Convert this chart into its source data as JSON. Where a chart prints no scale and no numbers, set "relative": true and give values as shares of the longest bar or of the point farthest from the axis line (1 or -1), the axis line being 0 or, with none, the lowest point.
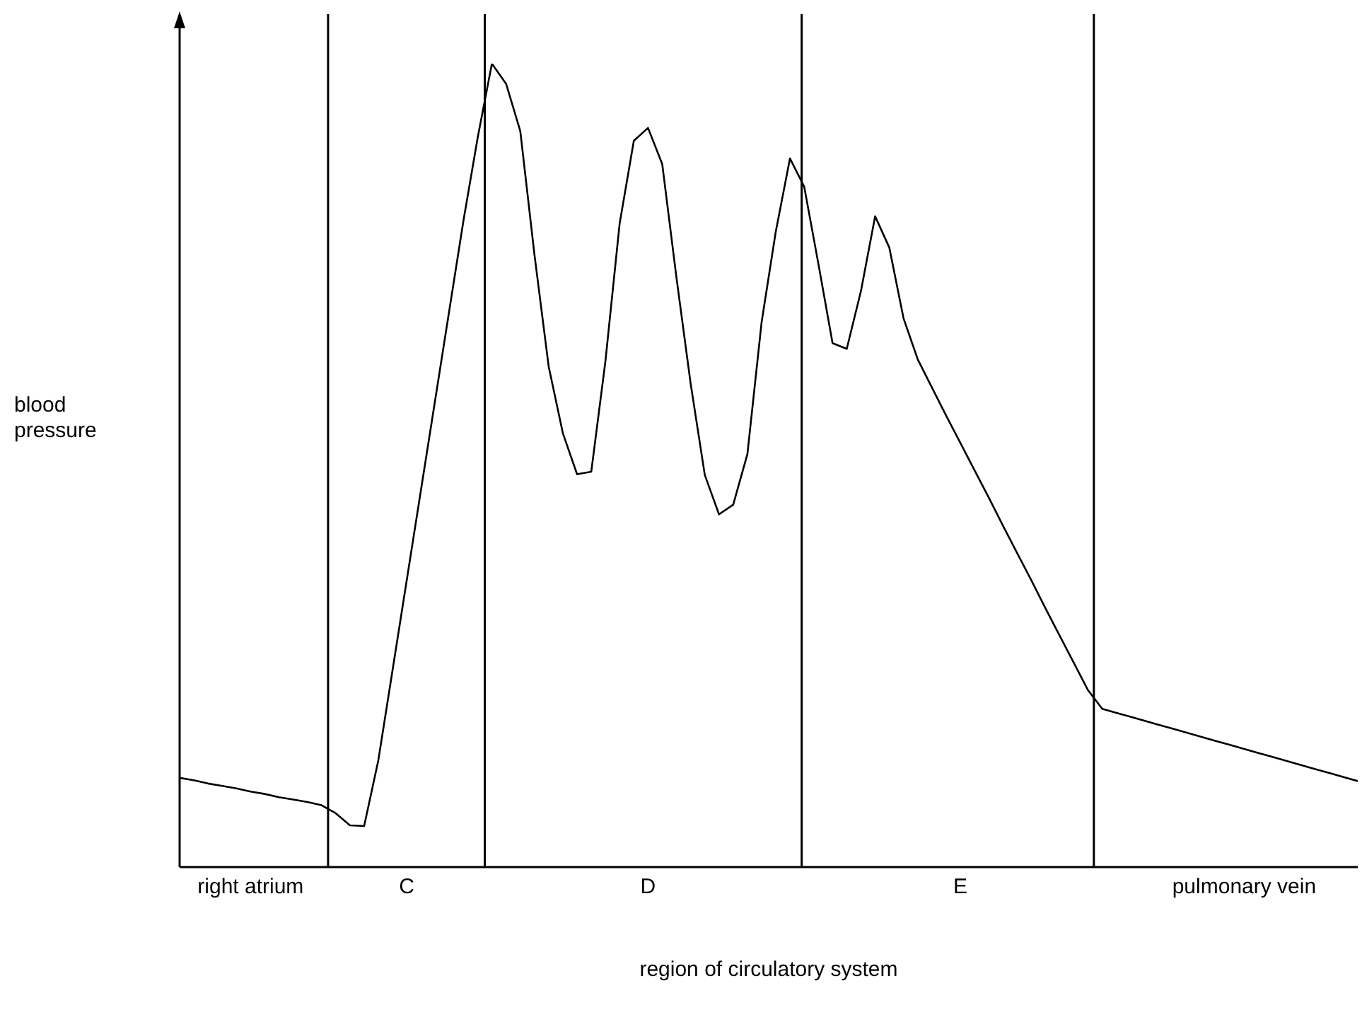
{
  "chart_data": {
    "type": "line",
    "relative": true,
    "xlabel": "region of circulatory system",
    "ylabel": "blood pressure",
    "categories": [
      null,
      null,
      null,
      null,
      null,
      "right atrium",
      null,
      null,
      null,
      null,
      null,
      null,
      null,
      null,
      null,
      null,
      "C",
      null,
      null,
      null,
      null,
      null,
      null,
      null,
      null,
      null,
      null,
      null,
      null,
      null,
      null,
      null,
      null,
      "D",
      null,
      null,
      null,
      null,
      null,
      null,
      null,
      null,
      null,
      null,
      null,
      null,
      null,
      null,
      null,
      null,
      null,
      null,
      null,
      null,
      null,
      "E",
      null,
      null,
      null,
      null,
      null,
      null,
      null,
      null,
      null,
      null,
      null,
      null,
      null,
      null,
      null,
      null,
      null,
      null,
      null,
      "pulmonary vein",
      null,
      null,
      null,
      null,
      null,
      null,
      null,
      null
    ],
    "grid": false,
    "legend": false,
    "marker": "none",
    "line_style": "solid",
    "series": [
      {
        "color": "#000000",
        "values": [
          0.111,
          0.108,
          0.104,
          0.101,
          0.098,
          0.094,
          0.091,
          0.087,
          0.084,
          0.081,
          0.077,
          0.067,
          0.052,
          0.051,
          0.133,
          0.245,
          0.357,
          0.469,
          0.581,
          0.693,
          0.805,
          0.908,
          1.0,
          0.975,
          0.916,
          0.762,
          0.623,
          0.54,
          0.489,
          0.492,
          0.63,
          0.801,
          0.904,
          0.92,
          0.875,
          0.734,
          0.602,
          0.488,
          0.439,
          0.451,
          0.514,
          0.678,
          0.791,
          0.882,
          0.847,
          0.751,
          0.652,
          0.645,
          0.717,
          0.81,
          0.771,
          0.683,
          0.632,
          0.597,
          0.562,
          0.528,
          0.494,
          0.46,
          0.425,
          0.391,
          0.357,
          0.322,
          0.288,
          0.254,
          0.22,
          0.197,
          0.192,
          0.187,
          0.182,
          0.177,
          0.172,
          0.167,
          0.162,
          0.157,
          0.152,
          0.147,
          0.142,
          0.137,
          0.132,
          0.127,
          0.122,
          0.117,
          0.112,
          0.107
        ]
      }
    ]
  }
}
